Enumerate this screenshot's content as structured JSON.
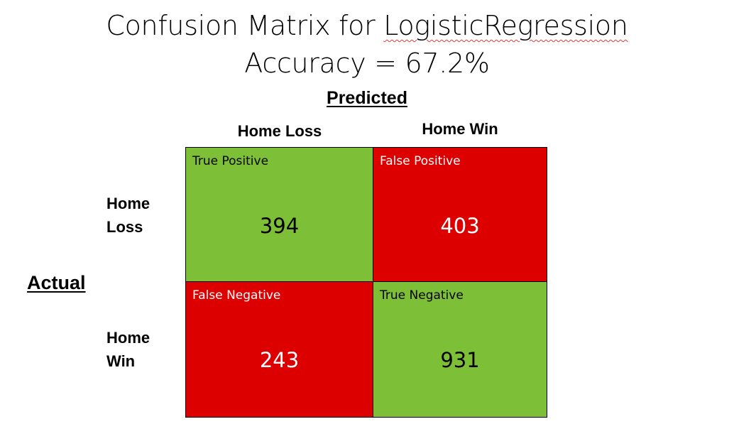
{
  "title": {
    "line1_prefix": "Confusion Matrix for ",
    "line1_model": "LogisticRegression",
    "line2": "Accuracy = 67.2%"
  },
  "axes": {
    "predicted_label": "Predicted",
    "actual_label": "Actual",
    "columns": [
      "Home Loss",
      "Home Win"
    ],
    "rows": [
      {
        "line1": "Home",
        "line2": "Loss"
      },
      {
        "line1": "Home",
        "line2": "Win"
      }
    ]
  },
  "colors": {
    "correct": "#7dbf36",
    "incorrect": "#dd0000",
    "correct_text": "#000000",
    "incorrect_text": "#ffffff"
  },
  "cells": [
    {
      "label": "True Positive",
      "value": "394",
      "kind": "correct"
    },
    {
      "label": "False Positive",
      "value": "403",
      "kind": "incorrect"
    },
    {
      "label": "False Negative",
      "value": "243",
      "kind": "incorrect"
    },
    {
      "label": "True Negative",
      "value": "931",
      "kind": "correct"
    }
  ]
}
